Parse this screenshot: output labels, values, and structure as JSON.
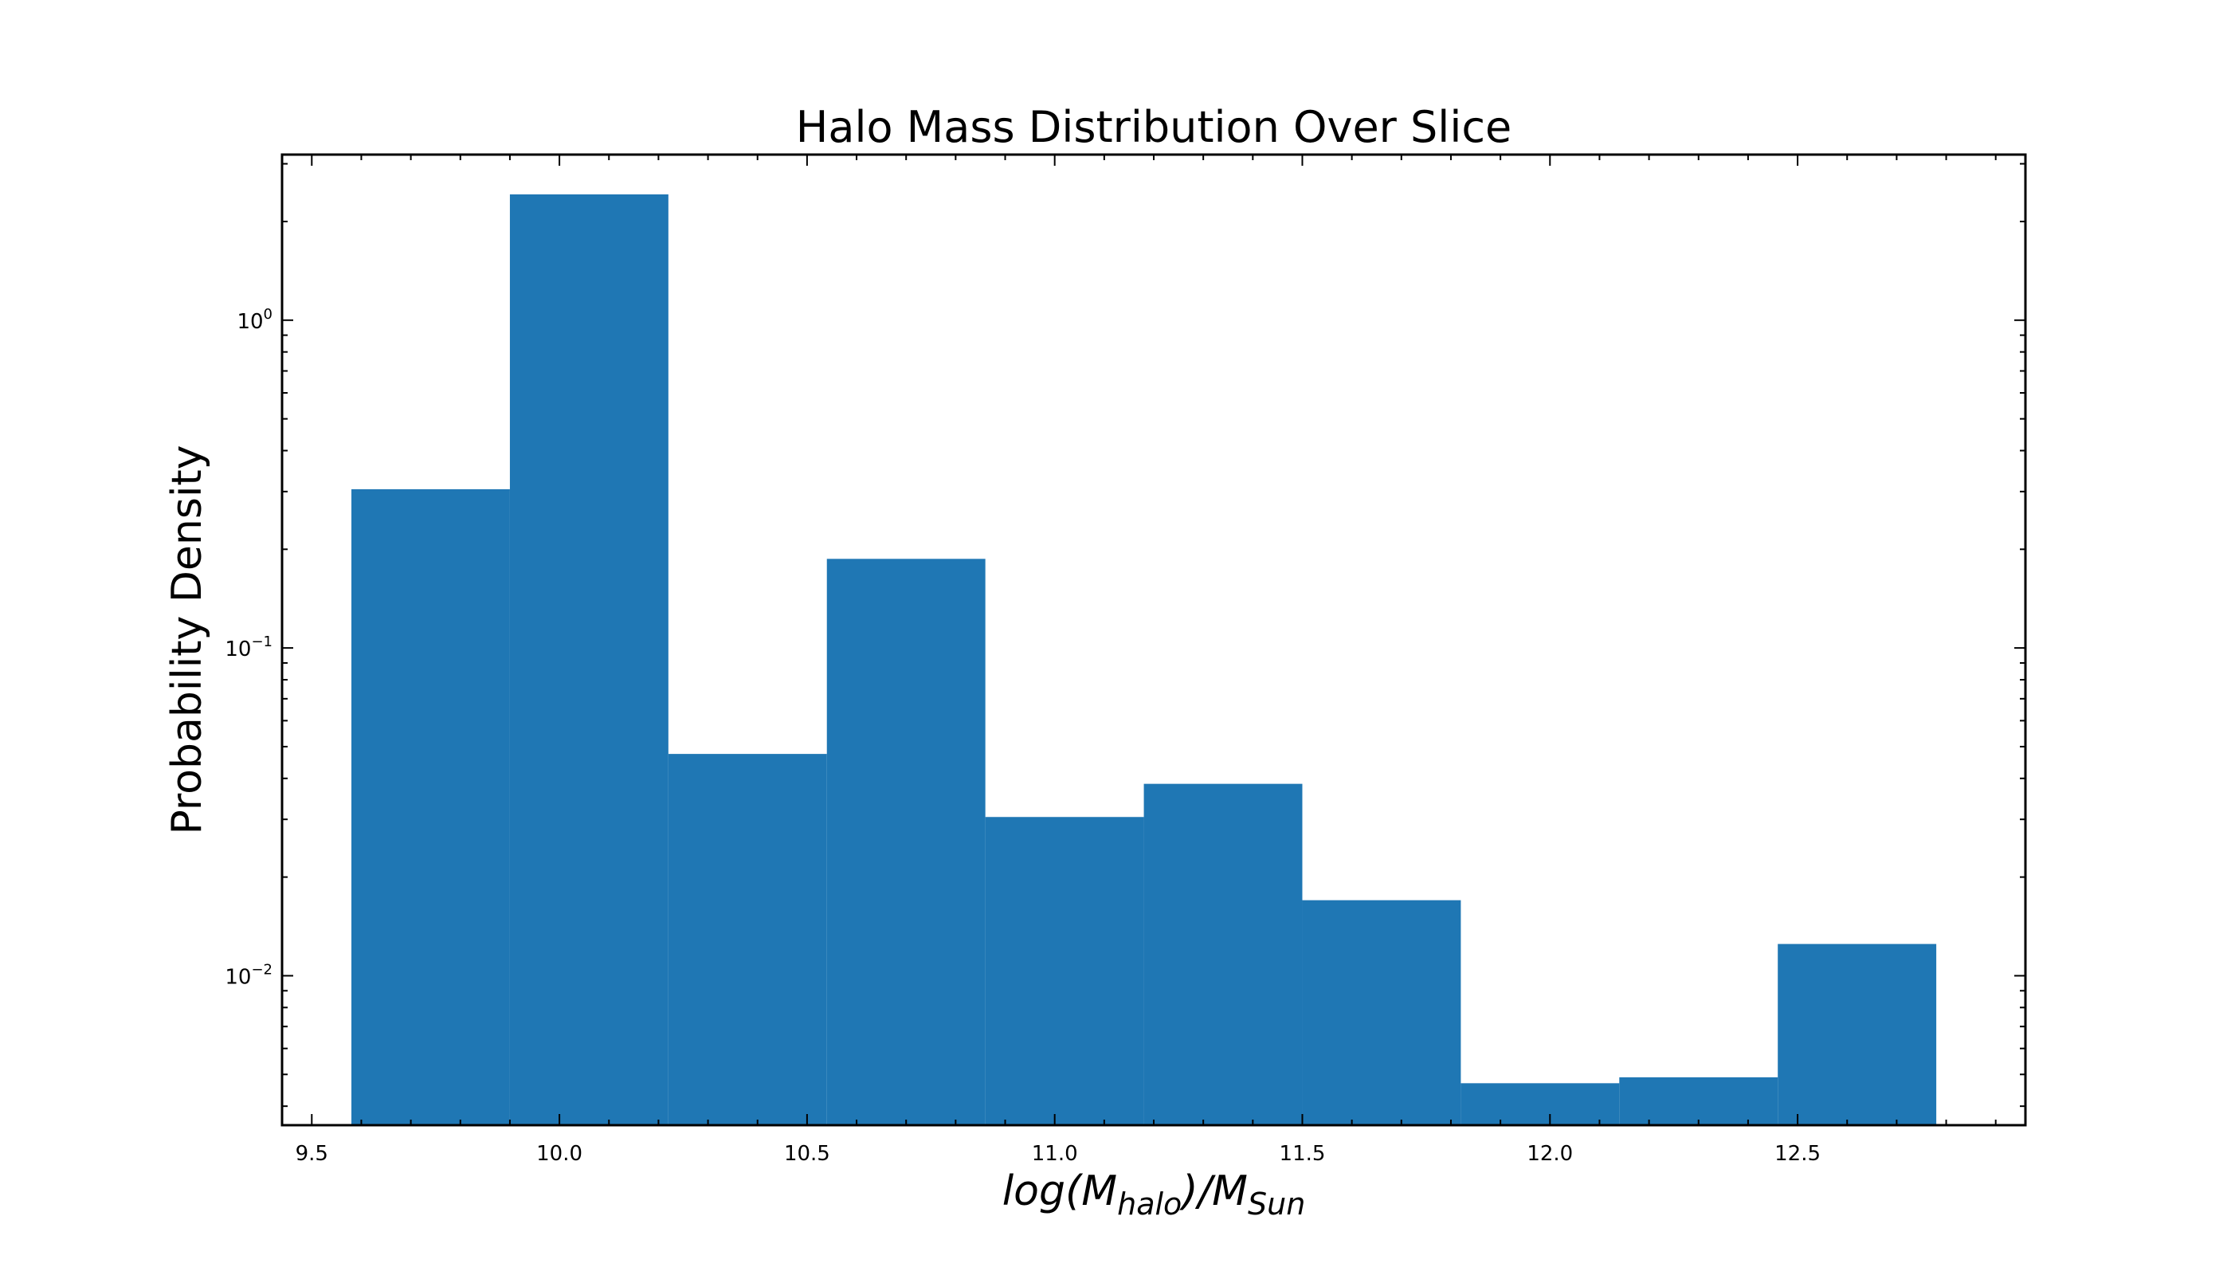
{
  "chart_data": {
    "type": "bar",
    "title": "Halo Mass Distribution Over Slice",
    "xlabel": "log(M_halo)/M_Sun",
    "xlabel_parts": {
      "pre": "log(M",
      "sub1": "halo",
      "mid": ")/M",
      "sub2": "Sun"
    },
    "ylabel": "Probability Density",
    "y_scale": "log",
    "xlim": [
      9.44,
      12.96
    ],
    "ylim": [
      0.0035,
      3.2
    ],
    "x_ticks": [
      {
        "value": 9.5,
        "label": "9.5"
      },
      {
        "value": 10.0,
        "label": "10.0"
      },
      {
        "value": 10.5,
        "label": "10.5"
      },
      {
        "value": 11.0,
        "label": "11.0"
      },
      {
        "value": 11.5,
        "label": "11.5"
      },
      {
        "value": 12.0,
        "label": "12.0"
      },
      {
        "value": 12.5,
        "label": "12.5"
      }
    ],
    "y_ticks": [
      {
        "value": 0.01,
        "base": "10",
        "exp": "−2"
      },
      {
        "value": 0.1,
        "base": "10",
        "exp": "−1"
      },
      {
        "value": 1,
        "base": "10",
        "exp": "0"
      }
    ],
    "bin_edges": [
      9.58,
      9.9,
      10.22,
      10.54,
      10.86,
      11.18,
      11.5,
      11.82,
      12.14,
      12.46,
      12.78
    ],
    "values": [
      0.305,
      2.42,
      0.0475,
      0.187,
      0.0305,
      0.0385,
      0.017,
      0.0047,
      0.0049,
      0.0125
    ],
    "bar_color": "#1f77b4",
    "grid": false
  }
}
